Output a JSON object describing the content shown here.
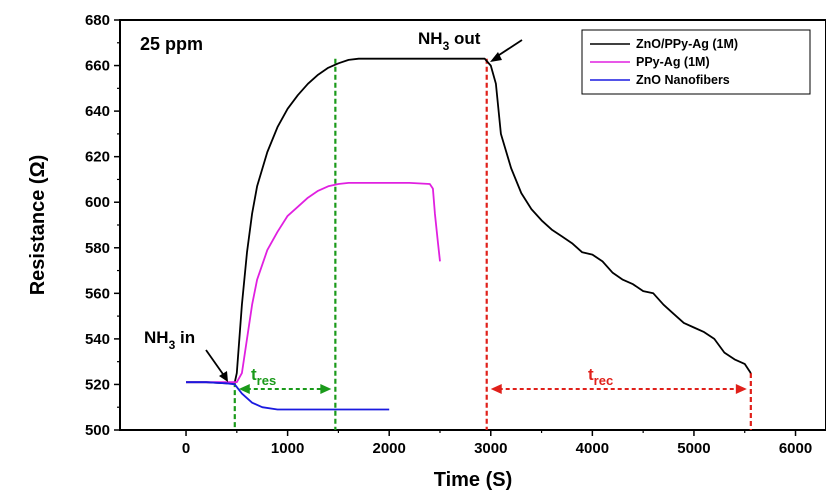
{
  "chart_data": {
    "type": "line",
    "annotations": {
      "concentration": "25 ppm",
      "gas_in": {
        "main": "NH",
        "sub": "3",
        "rest": " in",
        "x": 470,
        "y": 521
      },
      "gas_out": {
        "main": "NH",
        "sub": "3",
        "rest": " out",
        "x": 2990,
        "y": 663
      },
      "response_time": {
        "main": "t",
        "sub": "res",
        "x_start": 480,
        "x_end": 1470,
        "y": 518,
        "color": "#1a9a1a"
      },
      "recovery_time": {
        "main": "t",
        "sub": "rec",
        "x_start": 2960,
        "x_end": 5560,
        "y": 518,
        "color": "#e0201a"
      }
    },
    "xlabel": "Time (S)",
    "ylabel": "Resistance (Ω)",
    "xlim": [
      -650,
      6300
    ],
    "ylim": [
      500,
      680
    ],
    "xticks": [
      "0",
      "1000",
      "2000",
      "3000",
      "4000",
      "5000",
      "6000"
    ],
    "yticks": [
      "500",
      "520",
      "540",
      "560",
      "580",
      "600",
      "620",
      "640",
      "660",
      "680"
    ],
    "legend_position": "top-right",
    "series": [
      {
        "name": "ZnO/PPy-Ag (1M)",
        "color": "#000000",
        "x": [
          0,
          200,
          400,
          480,
          500,
          550,
          600,
          650,
          700,
          800,
          900,
          1000,
          1100,
          1200,
          1300,
          1400,
          1500,
          1600,
          1700,
          1800,
          2000,
          2500,
          2900,
          2940,
          2960,
          3000,
          3050,
          3100,
          3200,
          3300,
          3400,
          3500,
          3600,
          3700,
          3800,
          3900,
          4000,
          4100,
          4200,
          4300,
          4400,
          4500,
          4600,
          4700,
          4800,
          4900,
          5000,
          5100,
          5200,
          5300,
          5400,
          5500,
          5560
        ],
        "y": [
          521,
          521,
          520.5,
          521,
          525,
          555,
          578,
          595,
          607,
          622,
          633,
          641,
          647,
          652,
          656,
          659,
          661,
          662.5,
          663,
          663,
          663,
          663,
          663,
          663,
          662,
          660,
          652,
          630,
          615,
          604,
          597,
          592,
          588,
          585,
          582,
          578,
          577,
          574,
          569,
          566,
          564,
          561,
          560,
          555,
          551,
          547,
          545,
          543,
          540,
          534,
          531,
          529,
          525
        ]
      },
      {
        "name": "PPy-Ag (1M)",
        "color": "#e020e0",
        "x": [
          0,
          200,
          400,
          500,
          550,
          600,
          650,
          700,
          800,
          900,
          1000,
          1100,
          1200,
          1300,
          1400,
          1500,
          1600,
          1800,
          2000,
          2200,
          2400,
          2430,
          2450,
          2480,
          2500
        ],
        "y": [
          521,
          521,
          521,
          521,
          525,
          540,
          555,
          566,
          579,
          587,
          594,
          598,
          602,
          605,
          607,
          608,
          608.5,
          608.5,
          608.5,
          608.5,
          608,
          606,
          595,
          582,
          574
        ]
      },
      {
        "name": "ZnO Nanofibers",
        "color": "#1a1ae0",
        "x": [
          0,
          200,
          400,
          480,
          550,
          650,
          750,
          900,
          1100,
          1300,
          1600,
          1800,
          2000
        ],
        "y": [
          521,
          521,
          520.5,
          520,
          516,
          512,
          510,
          509,
          509,
          509,
          509,
          509,
          509
        ]
      }
    ]
  }
}
